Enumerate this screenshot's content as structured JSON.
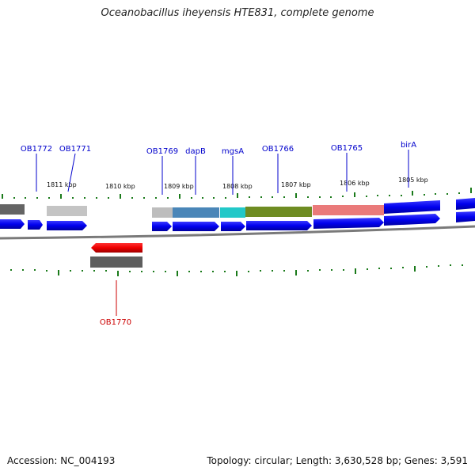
{
  "title": "Oceanobacillus iheyensis HTE831, complete genome",
  "footer": {
    "accession": "Accession: NC_004193",
    "summary": "Topology: circular; Length: 3,630,528 bp; Genes: 3,591"
  },
  "ticks": [
    "1811 kbp",
    "1810 kbp",
    "1809 kbp",
    "1808 kbp",
    "1807 kbp",
    "1806 kbp",
    "1805 kbp"
  ],
  "genes_top": [
    "OB1772",
    "OB1771",
    "OB1769",
    "dapB",
    "mgsA",
    "OB1766",
    "OB1765",
    "birA"
  ],
  "genes_bottom": [
    "OB1770"
  ],
  "colors": {
    "forward_cds": "#0000ee",
    "reverse_cds": "#ee0000",
    "label_blue": "#0000cc",
    "label_red": "#cc0000",
    "tick_green": "#006600",
    "backbone": "#777777"
  }
}
